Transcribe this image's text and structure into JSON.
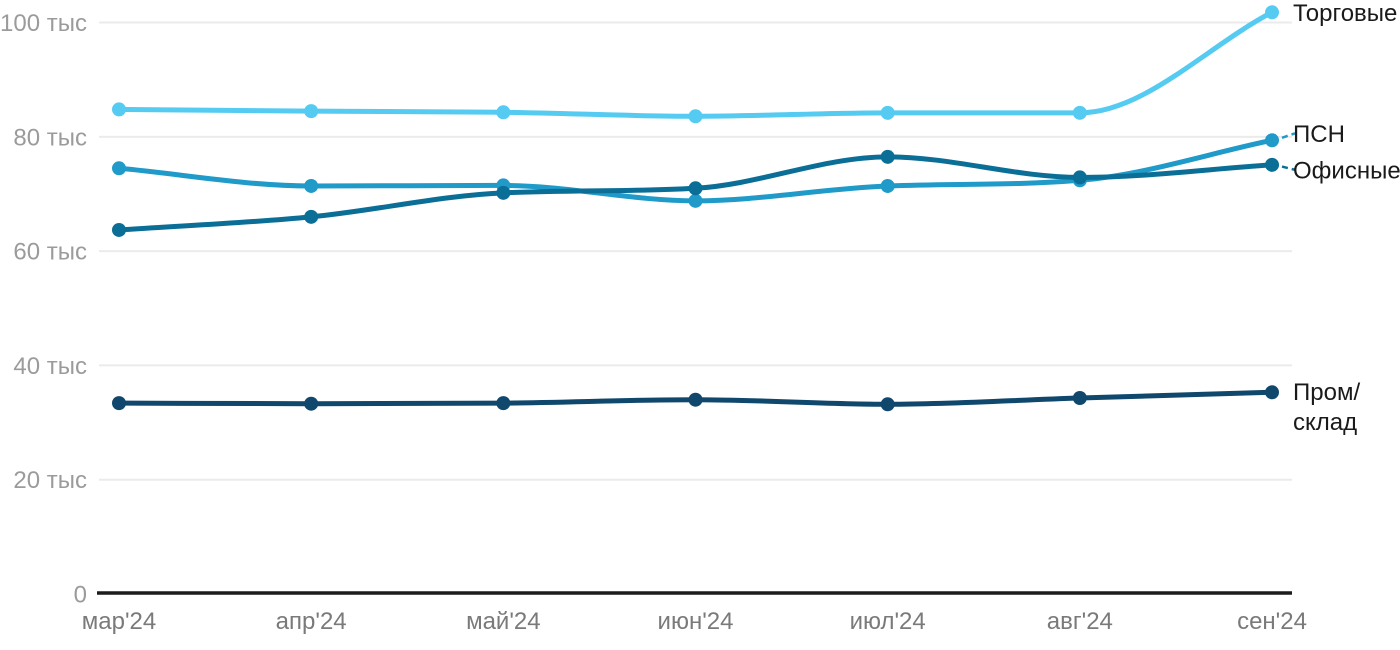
{
  "chart_data": {
    "type": "line",
    "title": "",
    "x_categories": [
      "мар'24",
      "апр'24",
      "май'24",
      "июн'24",
      "июл'24",
      "авг'24",
      "сен'24"
    ],
    "y_axis": {
      "min": 0,
      "max": 105,
      "tick_values": [
        0,
        20,
        40,
        60,
        80,
        100
      ],
      "tick_labels": [
        "0",
        "20 тыс",
        "40 тыс",
        "60 тыс",
        "80 тыс",
        "100 тыс"
      ]
    },
    "grid": "horizontal-only",
    "legend_position": "right-end-labels",
    "series": [
      {
        "key": "torgovye",
        "name": "Торговые",
        "label_lines": [
          "Торговые"
        ],
        "color": "#55CBF1",
        "leader_dash": false,
        "values": [
          84.8,
          84.5,
          84.3,
          83.6,
          84.2,
          84.2,
          101.8
        ]
      },
      {
        "key": "psn",
        "name": "ПСН",
        "label_lines": [
          "ПСН"
        ],
        "color": "#1F9AC9",
        "leader_dash": true,
        "values": [
          74.5,
          71.4,
          71.5,
          68.8,
          71.4,
          72.4,
          79.4
        ]
      },
      {
        "key": "ofisnye",
        "name": "Офисные",
        "label_lines": [
          "Офисные"
        ],
        "color": "#0B6E96",
        "leader_dash": true,
        "values": [
          63.7,
          66.0,
          70.2,
          71.0,
          76.5,
          72.9,
          75.1
        ]
      },
      {
        "key": "prom-sklad",
        "name": "Пром/склад",
        "label_lines": [
          "Пром/",
          "склад"
        ],
        "color": "#10476C",
        "leader_dash": false,
        "values": [
          33.4,
          33.3,
          33.4,
          34.0,
          33.2,
          34.3,
          35.3
        ]
      }
    ],
    "colors": {
      "background": "#FFFFFF",
      "grid": "#EBEBEB",
      "axis": "#1C1C1C",
      "y_tick_label": "#9B9B9B",
      "x_tick_label": "#7A7A7A",
      "series_label": "#1A1A1A"
    }
  }
}
